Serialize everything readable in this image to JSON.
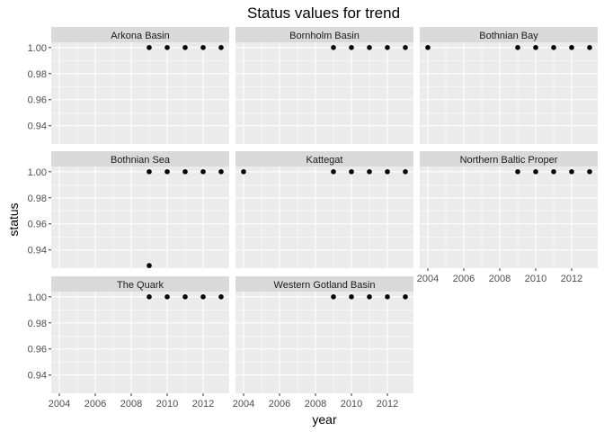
{
  "chart_data": {
    "type": "scatter",
    "title": "Status values for trend",
    "xlabel": "year",
    "ylabel": "status",
    "x_ticks": [
      2004,
      2006,
      2008,
      2010,
      2012
    ],
    "y_ticks": [
      0.94,
      0.96,
      0.98,
      1.0
    ],
    "y_tick_labels": [
      "0.94",
      "0.96",
      "0.98",
      "1.00"
    ],
    "xlim": [
      2003.55,
      2013.45
    ],
    "ylim": [
      0.926,
      1.004
    ],
    "grid": true,
    "facets": [
      {
        "name": "Arkona Basin",
        "points": [
          [
            2009,
            1.0
          ],
          [
            2010,
            1.0
          ],
          [
            2011,
            1.0
          ],
          [
            2012,
            1.0
          ],
          [
            2013,
            1.0
          ]
        ]
      },
      {
        "name": "Bornholm Basin",
        "points": [
          [
            2009,
            1.0
          ],
          [
            2010,
            1.0
          ],
          [
            2011,
            1.0
          ],
          [
            2012,
            1.0
          ],
          [
            2013,
            1.0
          ]
        ]
      },
      {
        "name": "Bothnian Bay",
        "points": [
          [
            2004,
            1.0
          ],
          [
            2009,
            1.0
          ],
          [
            2010,
            1.0
          ],
          [
            2011,
            1.0
          ],
          [
            2012,
            1.0
          ],
          [
            2013,
            1.0
          ]
        ]
      },
      {
        "name": "Bothnian Sea",
        "points": [
          [
            2009,
            1.0
          ],
          [
            2010,
            1.0
          ],
          [
            2011,
            1.0
          ],
          [
            2012,
            1.0
          ],
          [
            2013,
            1.0
          ],
          [
            2009,
            0.928
          ]
        ]
      },
      {
        "name": "Kattegat",
        "points": [
          [
            2004,
            1.0
          ],
          [
            2009,
            1.0
          ],
          [
            2010,
            1.0
          ],
          [
            2011,
            1.0
          ],
          [
            2012,
            1.0
          ],
          [
            2013,
            1.0
          ]
        ]
      },
      {
        "name": "Northern Baltic Proper",
        "points": [
          [
            2009,
            1.0
          ],
          [
            2010,
            1.0
          ],
          [
            2011,
            1.0
          ],
          [
            2012,
            1.0
          ],
          [
            2013,
            1.0
          ]
        ]
      },
      {
        "name": "The Quark",
        "points": [
          [
            2009,
            1.0
          ],
          [
            2010,
            1.0
          ],
          [
            2011,
            1.0
          ],
          [
            2012,
            1.0
          ],
          [
            2013,
            1.0
          ]
        ]
      },
      {
        "name": "Western Gotland Basin",
        "points": [
          [
            2009,
            1.0
          ],
          [
            2010,
            1.0
          ],
          [
            2011,
            1.0
          ],
          [
            2012,
            1.0
          ],
          [
            2013,
            1.0
          ]
        ]
      }
    ],
    "colors": {
      "panel_bg": "#ebebeb",
      "strip_bg": "#d9d9d9",
      "grid": "#ffffff",
      "point": "#000000"
    }
  }
}
